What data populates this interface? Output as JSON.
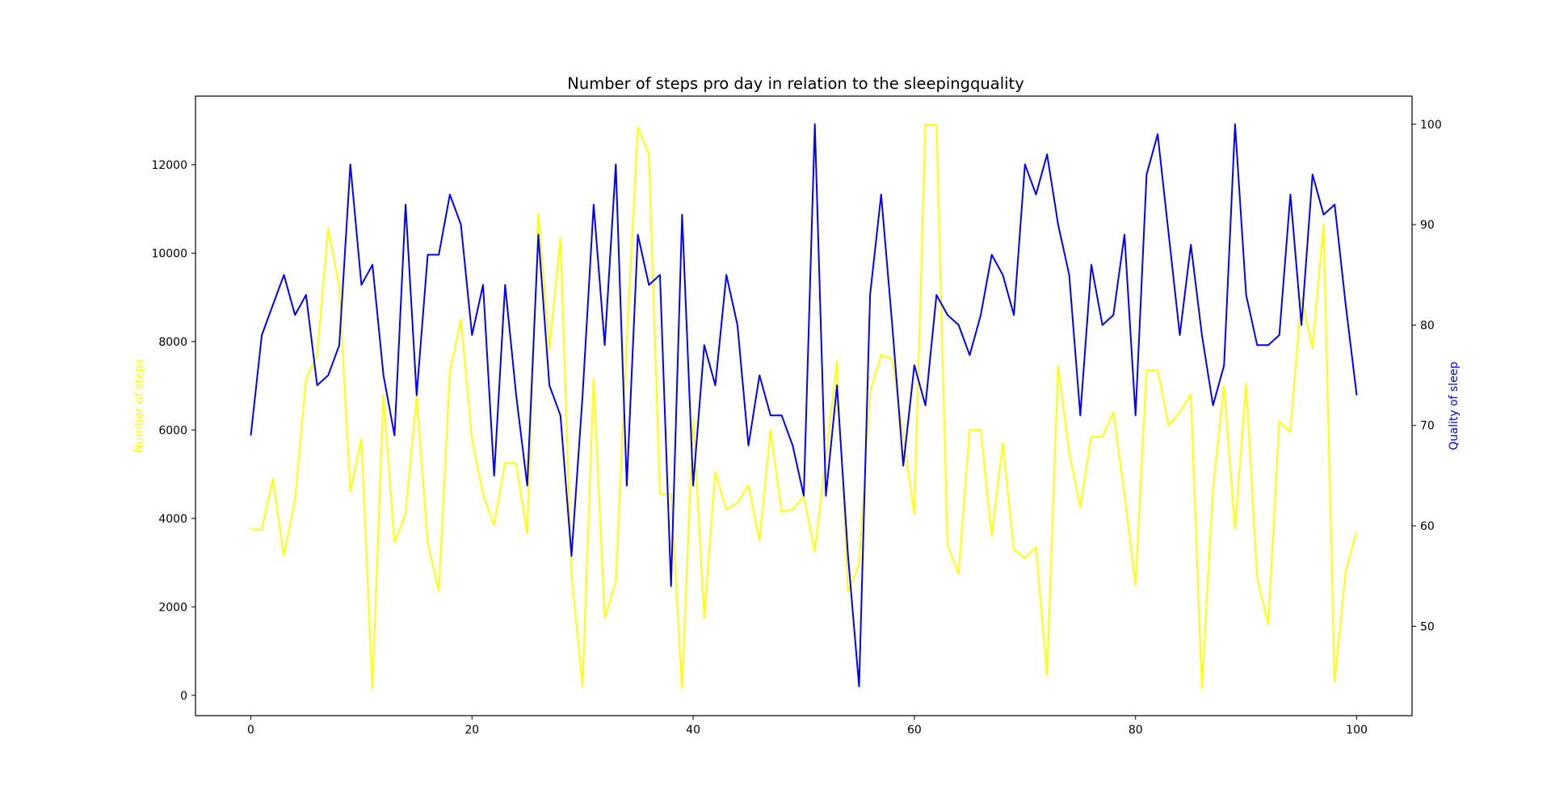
{
  "chart_data": {
    "type": "line",
    "title": "Number of steps pro day in relation to the sleepingquality",
    "xlabel": "",
    "x_ticks": [
      "0",
      "20",
      "40",
      "60",
      "80",
      "100"
    ],
    "xlim": [
      -5,
      105
    ],
    "y_left": {
      "label": "Number of steps",
      "color": "#ffff00",
      "ticks": [
        "0",
        "2000",
        "4000",
        "6000",
        "8000",
        "10000",
        "12000"
      ],
      "ylim": [
        -460,
        13550
      ]
    },
    "y_right": {
      "label": "Quality of sleep",
      "color": "#0000ff",
      "ticks": [
        "50",
        "60",
        "70",
        "80",
        "90",
        "100"
      ],
      "ylim": [
        41.1,
        102.8
      ]
    },
    "grid": false,
    "x": [
      0,
      1,
      2,
      3,
      4,
      5,
      6,
      7,
      8,
      9,
      10,
      11,
      12,
      13,
      14,
      15,
      16,
      17,
      18,
      19,
      20,
      21,
      22,
      23,
      24,
      25,
      26,
      27,
      28,
      29,
      30,
      31,
      32,
      33,
      34,
      35,
      36,
      37,
      38,
      39,
      40,
      41,
      42,
      43,
      44,
      45,
      46,
      47,
      48,
      49,
      50,
      51,
      52,
      53,
      54,
      55,
      56,
      57,
      58,
      59,
      60,
      61,
      62,
      63,
      64,
      65,
      66,
      67,
      68,
      69,
      70,
      71,
      72,
      73,
      74,
      75,
      76,
      77,
      78,
      79,
      80,
      81,
      82,
      83,
      84,
      85,
      86,
      87,
      88,
      89,
      90,
      91,
      92,
      93,
      94,
      95,
      96,
      97,
      98,
      99,
      100
    ],
    "series": [
      {
        "name": "Number of steps",
        "axis": "left",
        "color": "#ffff00",
        "values": [
          3750,
          3750,
          4900,
          3150,
          4400,
          7150,
          7700,
          10550,
          9250,
          4600,
          5800,
          150,
          6800,
          3450,
          4100,
          6750,
          3450,
          2350,
          7300,
          8500,
          5800,
          4550,
          3850,
          5250,
          5250,
          3650,
          10900,
          7800,
          10350,
          2750,
          200,
          7150,
          1750,
          2550,
          8000,
          12850,
          12250,
          4550,
          4550,
          150,
          6300,
          1750,
          5050,
          4200,
          4350,
          4750,
          3500,
          6000,
          4150,
          4200,
          4500,
          3250,
          5350,
          7550,
          2350,
          2950,
          6850,
          7700,
          7600,
          5850,
          4100,
          12900,
          12900,
          3400,
          2750,
          6000,
          6000,
          3600,
          5700,
          3300,
          3100,
          3350,
          450,
          7450,
          5500,
          4250,
          5850,
          5850,
          6400,
          4550,
          2500,
          7350,
          7350,
          6100,
          6400,
          6800,
          150,
          4650,
          7000,
          3750,
          7050,
          2650,
          1600,
          6200,
          5950,
          9000,
          7850,
          10650,
          300,
          2800,
          3700
        ]
      },
      {
        "name": "Quality of sleep",
        "axis": "right",
        "color": "#0000ff",
        "values": [
          69,
          79,
          82,
          85,
          81,
          83,
          74,
          75,
          78,
          96,
          84,
          86,
          75,
          69,
          92,
          73,
          87,
          87,
          93,
          90,
          79,
          84,
          65,
          84,
          73,
          64,
          89,
          74,
          71,
          57,
          73,
          92,
          78,
          96,
          64,
          89,
          84,
          85,
          54,
          91,
          64,
          78,
          74,
          85,
          80,
          68,
          75,
          71,
          71,
          68,
          63,
          100,
          63,
          74,
          57,
          44,
          83,
          93,
          80,
          66,
          76,
          72,
          83,
          81,
          80,
          77,
          81,
          87,
          85,
          81,
          96,
          93,
          97,
          90,
          85,
          71,
          86,
          80,
          81,
          89,
          71,
          95,
          99,
          89,
          79,
          88,
          79,
          72,
          76,
          100,
          83,
          78,
          78,
          79,
          93,
          80,
          95,
          91,
          92,
          82,
          73
        ]
      }
    ]
  }
}
